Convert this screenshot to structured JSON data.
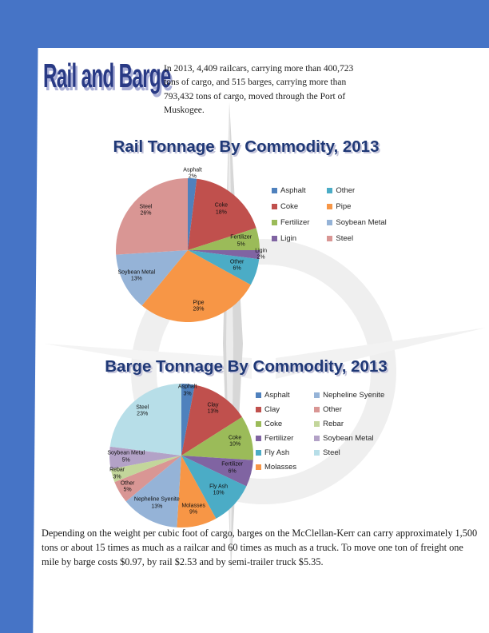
{
  "page": {
    "masthead": "Rail and Barge",
    "intro": "In 2013, 4,409 railcars, carrying more than 400,723 tons of cargo, and 515 barges, carrying more than 793,432 tons of cargo, moved through the Port of Muskogee.",
    "footer": "Depending on the weight per cubic foot of cargo, barges on the McClellan-Kerr can carry approximately 1,500 tons or about 15 times as much as a railcar and 60 times as much as a truck.  To move one ton of freight one mile by barge costs $0.97, by rail $2.53 and by semi-trailer truck $5.35.",
    "accent_color": "#4674C6",
    "title_color": "#1F3876"
  },
  "chart_data": [
    {
      "type": "pie",
      "title": "Rail Tonnage By Commodity, 2013",
      "legend_position": "right",
      "legend_rows": 4,
      "slices": [
        {
          "name": "Asphalt",
          "pct": 2,
          "color": "#4F81BD",
          "label_r": 1.06
        },
        {
          "name": "Coke",
          "pct": 18,
          "color": "#C0504D",
          "label_r": 0.73
        },
        {
          "name": "Fertilizer",
          "pct": 5,
          "color": "#9BBB59",
          "label_r": 0.75
        },
        {
          "name": "Ligin",
          "pct": 2,
          "color": "#8064A2",
          "label_r": 1.02
        },
        {
          "name": "Other",
          "pct": 6,
          "color": "#4BACC6",
          "label_r": 0.72
        },
        {
          "name": "Pipe",
          "pct": 28,
          "color": "#F79646",
          "label_r": 0.8
        },
        {
          "name": "Soybean Metal",
          "pct": 13,
          "color": "#95B3D7",
          "label_r": 0.8
        },
        {
          "name": "Steel",
          "pct": 26,
          "color": "#D99694",
          "label_r": 0.8
        }
      ]
    },
    {
      "type": "pie",
      "title": "Barge Tonnage By Commodity, 2013",
      "legend_position": "right",
      "legend_rows": 6,
      "slices": [
        {
          "name": "Asphalt",
          "pct": 3,
          "color": "#4F81BD",
          "label_r": 0.9
        },
        {
          "name": "Clay",
          "pct": 13,
          "color": "#C0504D",
          "label_r": 0.78
        },
        {
          "name": "Coke",
          "pct": 10,
          "color": "#9BBB59",
          "label_r": 0.77
        },
        {
          "name": "Fertilizer",
          "pct": 6,
          "color": "#8064A2",
          "label_r": 0.73
        },
        {
          "name": "Fly Ash",
          "pct": 10,
          "color": "#4BACC6",
          "label_r": 0.71
        },
        {
          "name": "Molasses",
          "pct": 9,
          "color": "#F79646",
          "label_r": 0.77
        },
        {
          "name": "Nepheline Syenite",
          "pct": 13,
          "color": "#95B3D7",
          "label_r": 0.75
        },
        {
          "name": "Other",
          "pct": 5,
          "color": "#D99694",
          "label_r": 0.87
        },
        {
          "name": "Rebar",
          "pct": 3,
          "color": "#C3D69B",
          "label_r": 0.93
        },
        {
          "name": "Soybean Metal",
          "pct": 5,
          "color": "#B3A2C7",
          "label_r": 0.77
        },
        {
          "name": "Steel",
          "pct": 23,
          "color": "#B7DEE8",
          "label_r": 0.82
        }
      ]
    }
  ]
}
